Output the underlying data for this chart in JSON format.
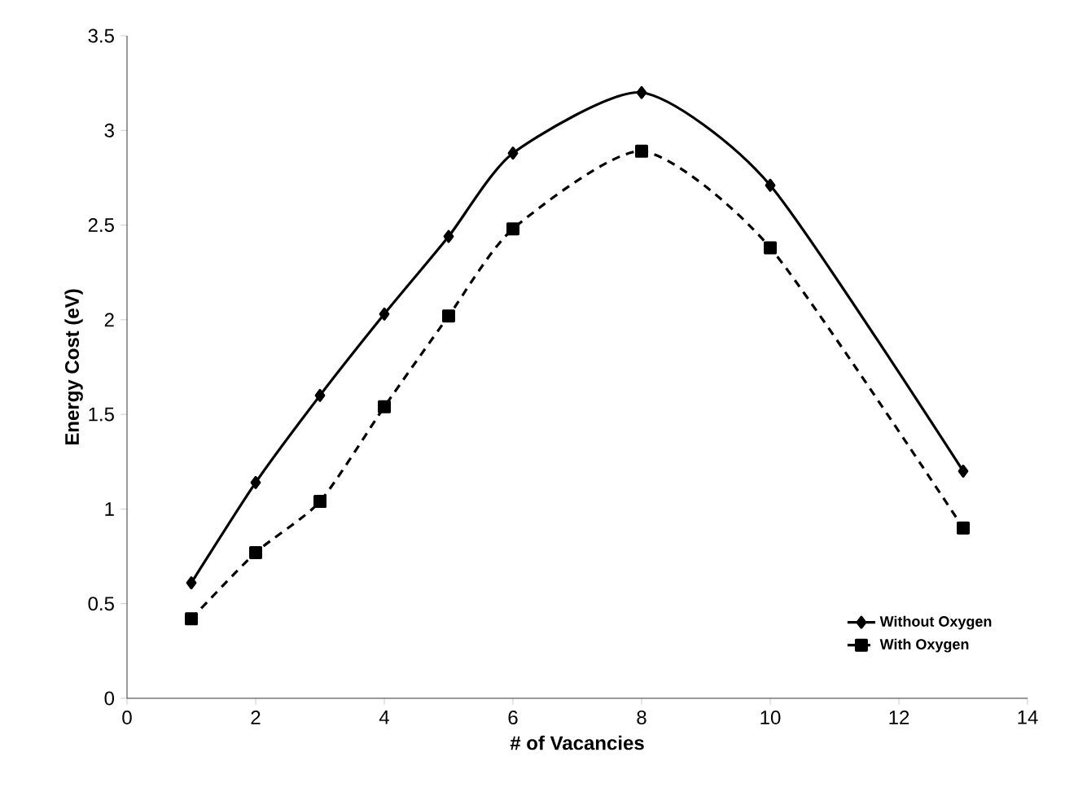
{
  "chart_data": {
    "type": "line",
    "xlabel": "# of Vacancies",
    "ylabel": "Energy Cost (eV)",
    "x": [
      1,
      2,
      3,
      4,
      5,
      6,
      8,
      10,
      13
    ],
    "series": [
      {
        "name": "Without Oxygen",
        "color": "#000000",
        "marker": "diamond",
        "line_style": "solid",
        "values": [
          0.61,
          1.14,
          1.6,
          2.03,
          2.44,
          2.88,
          3.2,
          2.71,
          1.2
        ]
      },
      {
        "name": "With Oxygen",
        "color": "#000000",
        "marker": "square",
        "line_style": "dashed",
        "values": [
          0.42,
          0.77,
          1.04,
          1.54,
          2.02,
          2.48,
          2.89,
          2.38,
          0.9
        ]
      }
    ],
    "xlim": [
      0,
      14
    ],
    "xticks": [
      0,
      2,
      4,
      6,
      8,
      10,
      12,
      14
    ],
    "ylim": [
      0,
      3.5
    ],
    "yticks": [
      0,
      0.5,
      1,
      1.5,
      2,
      2.5,
      3,
      3.5
    ],
    "grid": false,
    "legend": "bottom right"
  }
}
